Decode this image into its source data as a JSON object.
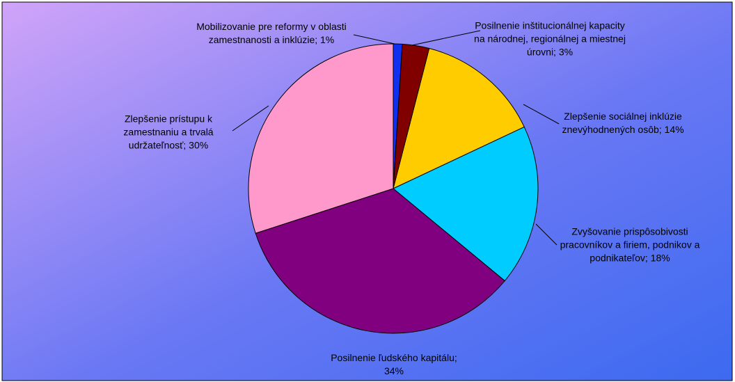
{
  "chart_data": {
    "type": "pie",
    "values": [
      1,
      3,
      14,
      18,
      34,
      30
    ],
    "value_labels": [
      "Mobilizovanie pre reformy v oblasti zamestnanosti a inklúzie; 1%",
      "Posilnenie inštitucionálnej kapacity na národnej, regionálnej a miestnej úrovni; 3%",
      "Zlepšenie sociálnej inklúzie znevýhodnených osôb; 14%",
      "Zvyšovanie prispôsobivosti pracovníkov a firiem, podnikov a podnikateľov; 18%",
      "Posilnenie ľudského kapitálu; 34%",
      "Zlepšenie prístupu k zamestnaniu a trvalá udržateľnosť; 30%"
    ],
    "colors": [
      "#1030f0",
      "#800000",
      "#ffcc00",
      "#00ccff",
      "#800080",
      "#ff99cc"
    ]
  }
}
